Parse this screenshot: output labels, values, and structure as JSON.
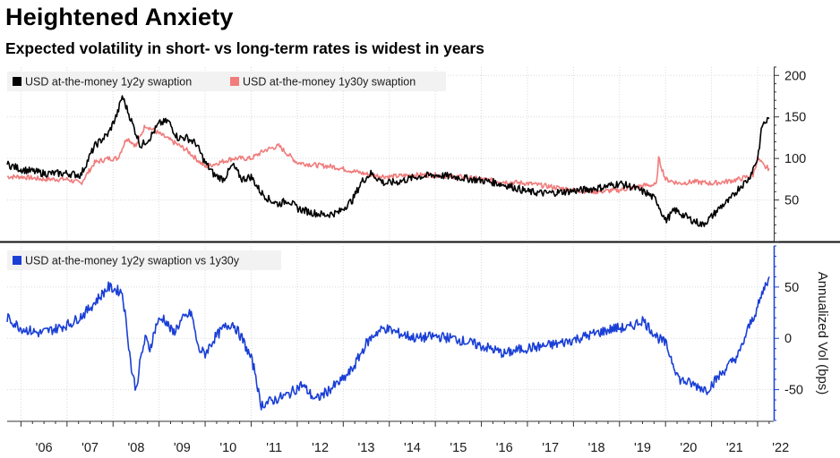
{
  "header": {
    "title": "Heightened Anxiety",
    "subtitle": "Expected volatility in short- vs long-term rates is widest in years"
  },
  "colors": {
    "black_series": "#000000",
    "red_series": "#f07c7c",
    "blue_series": "#1a3fd6",
    "grid": "#d9d9d9"
  },
  "x_axis": {
    "ticks": [
      "'06",
      "'07",
      "'08",
      "'09",
      "'10",
      "'11",
      "'12",
      "'13",
      "'14",
      "'15",
      "'16",
      "'17",
      "'18",
      "'19",
      "'20",
      "'21",
      "'22"
    ]
  },
  "chart_data": [
    {
      "type": "line",
      "legend": [
        "USD at-the-money 1y2y swaption",
        "USD at-the-money 1y30y swaption"
      ],
      "ylim": [
        0,
        210
      ],
      "yticks": [
        50,
        100,
        150,
        200
      ],
      "series": [
        {
          "name": "USD at-the-money 1y2y swaption",
          "x": [
            2005.7,
            2006.0,
            2006.5,
            2007.0,
            2007.3,
            2007.6,
            2007.9,
            2008.1,
            2008.2,
            2008.4,
            2008.6,
            2008.8,
            2009.0,
            2009.2,
            2009.4,
            2009.6,
            2009.8,
            2010.0,
            2010.2,
            2010.4,
            2010.6,
            2010.8,
            2011.0,
            2011.2,
            2011.4,
            2011.6,
            2011.8,
            2012.0,
            2012.3,
            2012.6,
            2012.9,
            2013.2,
            2013.4,
            2013.6,
            2013.9,
            2014.2,
            2014.6,
            2015.0,
            2015.4,
            2015.8,
            2016.2,
            2016.6,
            2017.0,
            2017.4,
            2017.8,
            2018.2,
            2018.6,
            2019.0,
            2019.3,
            2019.6,
            2019.8,
            2020.0,
            2020.2,
            2020.5,
            2020.8,
            2021.0,
            2021.2,
            2021.4,
            2021.6,
            2021.8,
            2022.0,
            2022.1,
            2022.25
          ],
          "values": [
            93,
            87,
            82,
            82,
            80,
            115,
            130,
            155,
            175,
            145,
            115,
            125,
            142,
            145,
            125,
            125,
            118,
            95,
            80,
            75,
            92,
            75,
            78,
            60,
            50,
            45,
            50,
            40,
            35,
            32,
            35,
            50,
            72,
            82,
            70,
            72,
            78,
            80,
            78,
            75,
            72,
            67,
            60,
            58,
            60,
            62,
            65,
            70,
            65,
            58,
            50,
            25,
            38,
            28,
            20,
            30,
            42,
            50,
            65,
            75,
            100,
            140,
            148
          ]
        },
        {
          "name": "USD at-the-money 1y30y swaption",
          "x": [
            2005.7,
            2006.0,
            2006.5,
            2007.0,
            2007.3,
            2007.6,
            2007.9,
            2008.1,
            2008.3,
            2008.5,
            2008.7,
            2009.0,
            2009.3,
            2009.6,
            2009.8,
            2010.0,
            2010.3,
            2010.6,
            2011.0,
            2011.3,
            2011.6,
            2012.0,
            2012.4,
            2012.8,
            2013.2,
            2013.6,
            2014.0,
            2014.5,
            2015.0,
            2015.5,
            2016.0,
            2016.5,
            2017.0,
            2017.5,
            2018.0,
            2018.5,
            2019.0,
            2019.3,
            2019.6,
            2019.8,
            2019.85,
            2020.0,
            2020.3,
            2020.6,
            2021.0,
            2021.3,
            2021.6,
            2021.9,
            2022.0,
            2022.15,
            2022.25
          ],
          "values": [
            78,
            78,
            75,
            75,
            70,
            95,
            100,
            100,
            125,
            115,
            140,
            130,
            120,
            110,
            100,
            90,
            95,
            100,
            100,
            110,
            115,
            95,
            92,
            90,
            85,
            80,
            78,
            80,
            80,
            78,
            75,
            72,
            70,
            66,
            62,
            60,
            62,
            65,
            68,
            68,
            100,
            75,
            70,
            72,
            70,
            72,
            75,
            80,
            100,
            90,
            88
          ]
        }
      ]
    },
    {
      "type": "line",
      "legend": [
        "USD at-the-money 1y2y swaption vs 1y30y"
      ],
      "ylabel": "Annualized Vol (bps)",
      "ylim": [
        -80,
        90
      ],
      "yticks": [
        -50,
        0,
        50
      ],
      "series": [
        {
          "name": "USD at-the-money 1y2y swaption vs 1y30y",
          "x": [
            2005.7,
            2006.0,
            2006.4,
            2006.8,
            2007.1,
            2007.4,
            2007.7,
            2007.9,
            2008.2,
            2008.3,
            2008.4,
            2008.5,
            2008.6,
            2008.7,
            2008.8,
            2008.95,
            2009.1,
            2009.3,
            2009.5,
            2009.7,
            2009.85,
            2010.0,
            2010.2,
            2010.4,
            2010.6,
            2010.8,
            2011.0,
            2011.1,
            2011.2,
            2011.5,
            2011.8,
            2012.1,
            2012.4,
            2012.7,
            2013.0,
            2013.2,
            2013.5,
            2013.7,
            2013.9,
            2014.2,
            2014.6,
            2015.0,
            2015.4,
            2015.8,
            2016.2,
            2016.5,
            2016.9,
            2017.3,
            2017.7,
            2018.1,
            2018.5,
            2018.9,
            2019.2,
            2019.5,
            2019.75,
            2019.85,
            2020.0,
            2020.3,
            2020.6,
            2020.9,
            2021.1,
            2021.3,
            2021.6,
            2021.8,
            2022.0,
            2022.15,
            2022.25
          ],
          "values": [
            20,
            10,
            5,
            10,
            15,
            25,
            40,
            50,
            45,
            10,
            -30,
            -50,
            -20,
            0,
            -10,
            15,
            20,
            5,
            18,
            25,
            -10,
            -15,
            0,
            10,
            15,
            0,
            -20,
            -35,
            -65,
            -60,
            -55,
            -45,
            -60,
            -50,
            -40,
            -30,
            -5,
            5,
            10,
            5,
            0,
            2,
            0,
            -5,
            -10,
            -15,
            -10,
            -8,
            -5,
            0,
            5,
            10,
            10,
            18,
            5,
            0,
            -5,
            -40,
            -45,
            -50,
            -40,
            -30,
            -15,
            10,
            30,
            50,
            60
          ]
        }
      ]
    }
  ]
}
